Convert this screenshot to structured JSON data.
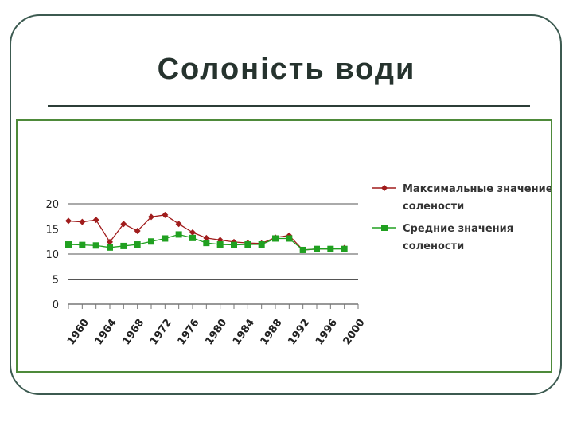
{
  "slide": {
    "title": "Солоність води"
  },
  "chart_data": {
    "type": "line",
    "x": [
      1960,
      1962,
      1964,
      1966,
      1968,
      1970,
      1972,
      1974,
      1976,
      1978,
      1980,
      1982,
      1984,
      1986,
      1988,
      1990,
      1992,
      1994,
      1996,
      1998,
      2000,
      2002
    ],
    "x_tick_labels": [
      "1960",
      "1964",
      "1968",
      "1972",
      "1976",
      "1980",
      "1984",
      "1988",
      "1992",
      "1996",
      "2000"
    ],
    "ylim": [
      0,
      20
    ],
    "y_ticks": [
      0,
      5,
      10,
      15,
      20
    ],
    "grid": "horizontal",
    "legend_position": "right",
    "series": [
      {
        "name": "Максимальные значение солености",
        "color": "#a01c1c",
        "marker": "diamond",
        "values": [
          16.6,
          16.4,
          16.8,
          12.4,
          16.0,
          14.6,
          17.4,
          17.8,
          16.0,
          14.3,
          13.2,
          12.8,
          12.4,
          12.2,
          12.1,
          13.3,
          13.7,
          10.8,
          11.0,
          11.0,
          11.2,
          null
        ]
      },
      {
        "name": "Средние значения солености",
        "color": "#20a020",
        "marker": "square",
        "values": [
          11.9,
          11.8,
          11.7,
          11.3,
          11.6,
          11.9,
          12.5,
          13.1,
          13.9,
          13.2,
          12.2,
          11.9,
          11.8,
          11.9,
          11.9,
          13.1,
          13.1,
          10.8,
          11.0,
          11.0,
          11.0,
          null
        ]
      }
    ]
  }
}
